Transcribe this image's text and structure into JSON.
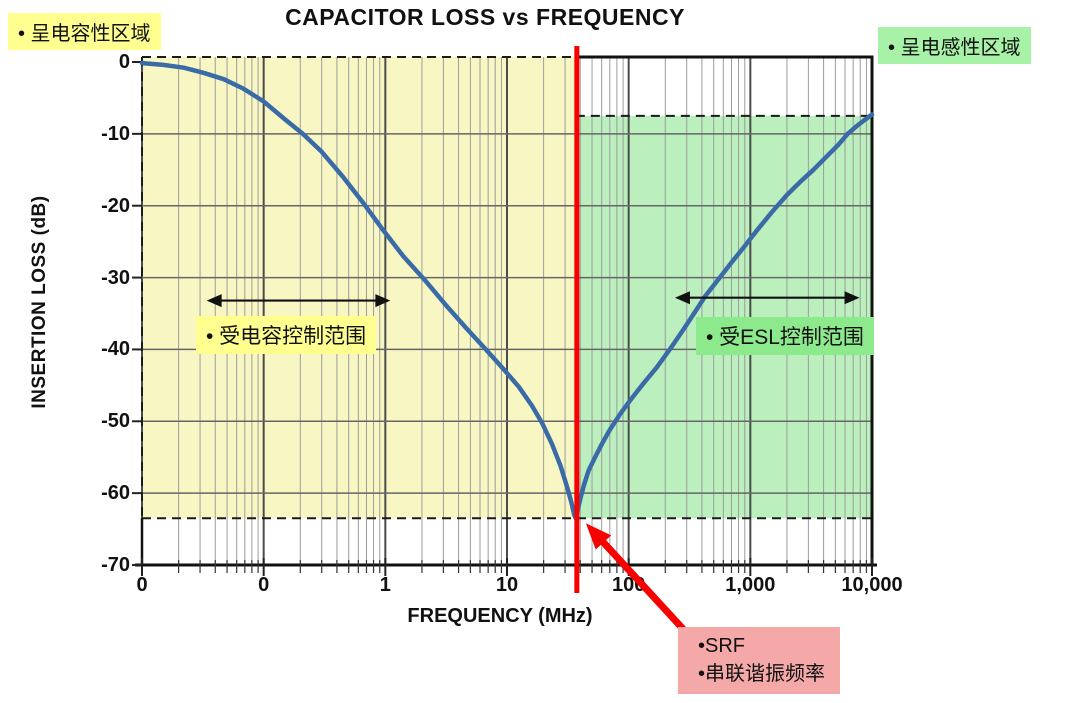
{
  "title": "CAPACITOR LOSS vs FREQUENCY",
  "colors": {
    "region_yellow": "#F8F7C4",
    "label_yellow": "#FFFF8F",
    "region_green": "#BCEFBE",
    "label_green_light": "#A8F2A8",
    "label_green_mid": "#8CE98C",
    "srf_pink": "#F5A8A8",
    "curve_blue": "#3A6BA6",
    "red": "#F60000",
    "grid_minor": "#9C9C9C",
    "grid_major": "#4B4B4B",
    "grid_horizontal": "#666666",
    "border_black": "#111111"
  },
  "chart_data": {
    "type": "line",
    "title": "CAPACITOR LOSS vs FREQUENCY",
    "xlabel": "FREQUENCY (MHz)",
    "ylabel": "INSERTION LOSS (dB)",
    "x_scale": "log",
    "x_range_mhz": [
      0.01,
      10000
    ],
    "ylim": [
      -70,
      0
    ],
    "grid": true,
    "x_tick_labels": [
      "0",
      "0",
      "1",
      "10",
      "100",
      "1,000",
      "10,000"
    ],
    "x_tick_values_mhz": [
      0.01,
      0.1,
      1,
      10,
      100,
      1000,
      10000
    ],
    "y_tick_labels": [
      "0",
      "-10",
      "-20",
      "-30",
      "-40",
      "-50",
      "-60",
      "-70"
    ],
    "y_tick_values": [
      0,
      -10,
      -20,
      -30,
      -40,
      -50,
      -60,
      -70
    ],
    "srf_mhz": 36.8,
    "min_db": -63.5,
    "series": [
      {
        "name": "capacitor-insertion-loss",
        "points_mhz_db": [
          [
            0.01,
            -0.15
          ],
          [
            0.015,
            -0.4
          ],
          [
            0.022,
            -0.8
          ],
          [
            0.032,
            -1.5
          ],
          [
            0.047,
            -2.4
          ],
          [
            0.068,
            -3.7
          ],
          [
            0.1,
            -5.5
          ],
          [
            0.15,
            -8.0
          ],
          [
            0.21,
            -10.0
          ],
          [
            0.3,
            -12.5
          ],
          [
            0.45,
            -16.0
          ],
          [
            0.65,
            -19.5
          ],
          [
            0.95,
            -23.3
          ],
          [
            1.4,
            -27.0
          ],
          [
            2.1,
            -30.3
          ],
          [
            3.1,
            -33.7
          ],
          [
            4.6,
            -37.0
          ],
          [
            6.7,
            -40.0
          ],
          [
            9.3,
            -42.7
          ],
          [
            12.5,
            -45.2
          ],
          [
            16,
            -47.8
          ],
          [
            19.5,
            -50.3
          ],
          [
            23.5,
            -53.2
          ],
          [
            27.5,
            -56.2
          ],
          [
            31,
            -59.0
          ],
          [
            33.8,
            -61.3
          ],
          [
            35.7,
            -63.0
          ],
          [
            36.8,
            -63.5
          ],
          [
            38,
            -62.5
          ],
          [
            40,
            -60.8
          ],
          [
            43,
            -58.8
          ],
          [
            47,
            -56.8
          ],
          [
            53,
            -55.0
          ],
          [
            60,
            -53.2
          ],
          [
            70,
            -51.2
          ],
          [
            85,
            -49.0
          ],
          [
            105,
            -46.9
          ],
          [
            130,
            -44.9
          ],
          [
            170,
            -42.5
          ],
          [
            220,
            -39.9
          ],
          [
            280,
            -37.3
          ],
          [
            350,
            -34.8
          ],
          [
            430,
            -32.5
          ],
          [
            550,
            -30.2
          ],
          [
            700,
            -27.9
          ],
          [
            900,
            -25.6
          ],
          [
            1150,
            -23.3
          ],
          [
            1500,
            -20.9
          ],
          [
            2000,
            -18.5
          ],
          [
            2600,
            -16.6
          ],
          [
            3300,
            -15.0
          ],
          [
            4200,
            -13.2
          ],
          [
            5300,
            -11.5
          ],
          [
            6300,
            -10.0
          ],
          [
            7500,
            -8.9
          ],
          [
            8800,
            -8.0
          ],
          [
            10000,
            -7.3
          ]
        ]
      }
    ],
    "regions": [
      {
        "name": "capacitive",
        "x_mhz": [
          0.01,
          36.8
        ],
        "y_db": [
          0,
          -63.5
        ]
      },
      {
        "name": "inductive",
        "x_mhz": [
          36.8,
          10000
        ],
        "y_db": [
          -7.5,
          -63.5
        ]
      }
    ],
    "range_arrows": [
      {
        "name": "cap-range",
        "x_mhz": [
          0.034,
          1.1
        ],
        "y_db": -33.2
      },
      {
        "name": "esl-range",
        "x_mhz": [
          240,
          7900
        ],
        "y_db": -32.8
      }
    ]
  },
  "annotations": {
    "top_left": "• 呈电容性区域",
    "top_right": "• 呈电感性区域",
    "cap_range": "• 受电容控制范围",
    "esl_range": "• 受ESL控制范围",
    "srf_line1": "•SRF",
    "srf_line2": "•串联谐振频率"
  }
}
